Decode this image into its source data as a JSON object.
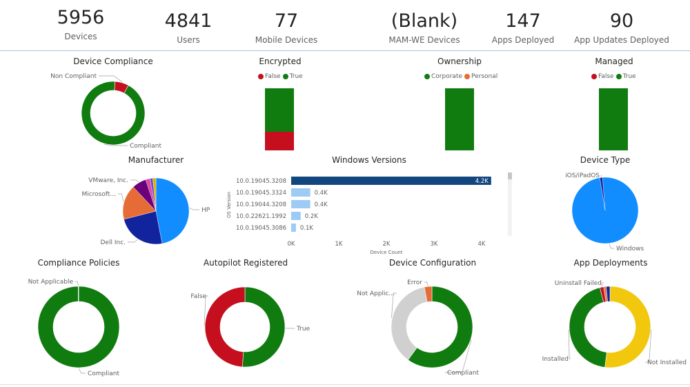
{
  "kpis": [
    {
      "value": "5956",
      "label": "Devices"
    },
    {
      "value": "4841",
      "label": "Users"
    },
    {
      "value": "77",
      "label": "Mobile Devices"
    },
    {
      "value": "(Blank)",
      "label": "MAM-WE Devices"
    },
    {
      "value": "147",
      "label": "Apps Deployed"
    },
    {
      "value": "90",
      "label": "App Updates Deployed"
    }
  ],
  "chart_data": [
    {
      "id": "compliance",
      "type": "donut",
      "title": "Device Compliance",
      "series": [
        {
          "label": "Compliant",
          "value": 0.93,
          "color": "#107c10"
        },
        {
          "label": "Non Compliant",
          "value": 0.07,
          "color": "#c50f1f"
        }
      ]
    },
    {
      "id": "encrypted",
      "type": "bar",
      "stacked": true,
      "title": "Encrypted",
      "legend": [
        {
          "label": "False",
          "color": "#c50f1f"
        },
        {
          "label": "True",
          "color": "#107c10"
        }
      ],
      "series": [
        {
          "name": "True",
          "value": 0.7,
          "color": "#107c10"
        },
        {
          "name": "False",
          "value": 0.3,
          "color": "#c50f1f"
        }
      ]
    },
    {
      "id": "ownership",
      "type": "bar",
      "stacked": true,
      "title": "Ownership",
      "legend": [
        {
          "label": "Corporate",
          "color": "#107c10"
        },
        {
          "label": "Personal",
          "color": "#e66c37"
        }
      ],
      "series": [
        {
          "name": "Corporate",
          "value": 1.0,
          "color": "#107c10"
        }
      ]
    },
    {
      "id": "managed",
      "type": "bar",
      "stacked": true,
      "title": "Managed",
      "legend": [
        {
          "label": "False",
          "color": "#c50f1f"
        },
        {
          "label": "True",
          "color": "#107c10"
        }
      ],
      "series": [
        {
          "name": "True",
          "value": 1.0,
          "color": "#107c10"
        }
      ]
    },
    {
      "id": "manufacturer",
      "type": "pie",
      "title": "Manufacturer",
      "series": [
        {
          "label": "HP",
          "value": 0.47,
          "color": "#118dff"
        },
        {
          "label": "Dell Inc.",
          "value": 0.24,
          "color": "#12239e"
        },
        {
          "label": "Microsoft...",
          "value": 0.17,
          "color": "#e66c37"
        },
        {
          "label": "VMware, Inc.",
          "value": 0.07,
          "color": "#6b007b"
        },
        {
          "label": "",
          "value": 0.02,
          "color": "#e044a7"
        },
        {
          "label": "",
          "value": 0.015,
          "color": "#744ec2"
        },
        {
          "label": "",
          "value": 0.015,
          "color": "#d9b300"
        }
      ]
    },
    {
      "id": "windows",
      "type": "bar",
      "orientation": "horizontal",
      "title": "Windows Versions",
      "ylabel": "OS Version",
      "xlabel": "Device Count",
      "categories": [
        "10.0.19045.3208",
        "10.0.19045.3324",
        "10.0.19044.3208",
        "10.0.22621.1992",
        "10.0.19045.3086"
      ],
      "values": [
        4200,
        400,
        400,
        200,
        100
      ],
      "data_labels": [
        "4.2K",
        "0.4K",
        "0.4K",
        "0.2K",
        "0.1K"
      ],
      "xticks": [
        "0K",
        "1K",
        "2K",
        "3K",
        "4K"
      ],
      "xlim": [
        0,
        4000
      ],
      "colors": {
        "highlight": "#12467e",
        "normal": "#9ccbf5"
      }
    },
    {
      "id": "devicetype",
      "type": "pie",
      "title": "Device Type",
      "series": [
        {
          "label": "Windows",
          "value": 0.987,
          "color": "#118dff"
        },
        {
          "label": "iOS/iPadOS",
          "value": 0.013,
          "color": "#12239e"
        }
      ]
    },
    {
      "id": "policies",
      "type": "donut",
      "title": "Compliance Policies",
      "series": [
        {
          "label": "Compliant",
          "value": 0.998,
          "color": "#107c10"
        },
        {
          "label": "Not Applicable",
          "value": 0.002,
          "color": "#a0a0a0"
        }
      ]
    },
    {
      "id": "autopilot",
      "type": "donut",
      "title": "Autopilot Registered",
      "series": [
        {
          "label": "True",
          "value": 0.51,
          "color": "#107c10"
        },
        {
          "label": "False",
          "value": 0.49,
          "color": "#c50f1f"
        }
      ]
    },
    {
      "id": "configuration",
      "type": "donut",
      "title": "Device Configuration",
      "series": [
        {
          "label": "Compliant",
          "value": 0.6,
          "color": "#107c10"
        },
        {
          "label": "Not Applic...",
          "value": 0.37,
          "color": "#d0d0d0"
        },
        {
          "label": "Error",
          "value": 0.03,
          "color": "#e66c37"
        }
      ]
    },
    {
      "id": "apps",
      "type": "donut",
      "title": "App Deployments",
      "series": [
        {
          "label": "Not Installed",
          "value": 0.52,
          "color": "#f2c80f"
        },
        {
          "label": "Installed",
          "value": 0.44,
          "color": "#107c10"
        },
        {
          "label": "Uninstall Failed",
          "value": 0.015,
          "color": "#c50f1f"
        },
        {
          "label": "",
          "value": 0.01,
          "color": "#e66c37"
        },
        {
          "label": "",
          "value": 0.015,
          "color": "#12239e"
        }
      ]
    }
  ]
}
